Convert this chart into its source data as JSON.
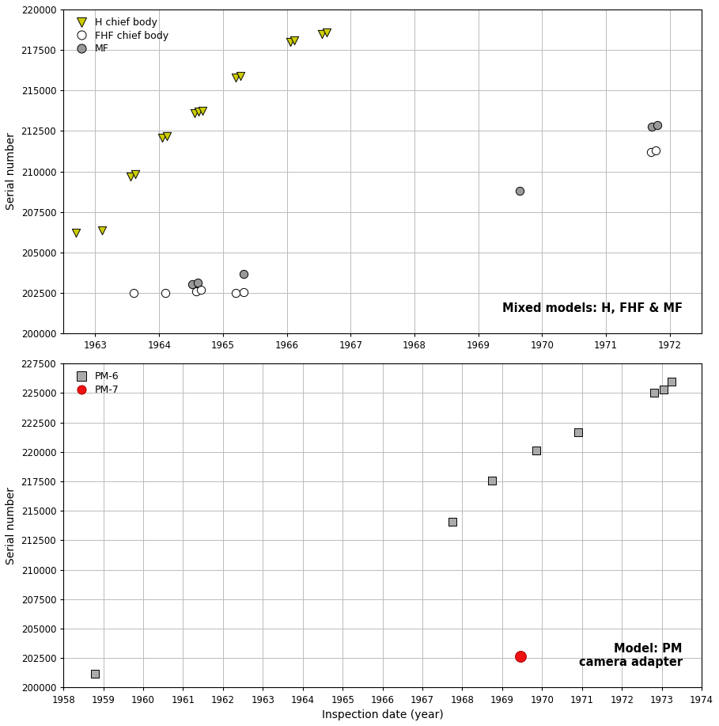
{
  "top_plot": {
    "H_chief_body": {
      "x": [
        1962.7,
        1963.1,
        1963.55,
        1963.62,
        1964.05,
        1964.12,
        1964.55,
        1964.62,
        1964.68,
        1965.2,
        1965.27,
        1966.05,
        1966.12,
        1966.55,
        1966.62
      ],
      "y": [
        206200,
        206350,
        209700,
        209850,
        212100,
        212200,
        213600,
        213700,
        213750,
        215800,
        215900,
        218000,
        218100,
        218500,
        218600
      ]
    },
    "FHF_chief_body": {
      "x": [
        1963.6,
        1964.1,
        1964.58,
        1964.65,
        1965.2,
        1965.32,
        1971.7,
        1971.78
      ],
      "y": [
        202500,
        202500,
        202600,
        202700,
        202500,
        202550,
        211200,
        211300
      ]
    },
    "MF": {
      "x": [
        1964.52,
        1964.6,
        1965.32,
        1969.65,
        1971.72,
        1971.8
      ],
      "y": [
        203050,
        203150,
        203650,
        208800,
        212750,
        212850
      ]
    },
    "ylim": [
      200000,
      220000
    ],
    "xlim": [
      1962.5,
      1972.5
    ],
    "yticks": [
      200000,
      202500,
      205000,
      207500,
      210000,
      212500,
      215000,
      217500,
      220000
    ],
    "xticks": [
      1963,
      1964,
      1965,
      1966,
      1967,
      1968,
      1969,
      1970,
      1971,
      1972
    ],
    "annotation": "Mixed models: H, FHF & MF"
  },
  "bottom_plot": {
    "PM6": {
      "x": [
        1958.8,
        1967.75,
        1968.75,
        1969.85,
        1970.9,
        1972.8,
        1973.05,
        1973.25
      ],
      "y": [
        201200,
        214100,
        217600,
        220100,
        221700,
        225000,
        225300,
        226000
      ]
    },
    "PM7": {
      "x": [
        1969.45
      ],
      "y": [
        202650
      ]
    },
    "ylim": [
      200000,
      227500
    ],
    "xlim": [
      1958.0,
      1974.0
    ],
    "yticks": [
      200000,
      202500,
      205000,
      207500,
      210000,
      212500,
      215000,
      217500,
      220000,
      222500,
      225000,
      227500
    ],
    "xticks": [
      1958,
      1959,
      1960,
      1961,
      1962,
      1963,
      1964,
      1965,
      1966,
      1967,
      1968,
      1969,
      1970,
      1971,
      1972,
      1973,
      1974
    ],
    "annotation": "Model: PM\ncamera adapter"
  },
  "colors": {
    "H_marker": "#cccc00",
    "FHF_marker": "#ffffff",
    "MF_marker": "#999999",
    "PM6_marker": "#aaaaaa",
    "PM7_marker": "#ee1111"
  },
  "xlabel": "Inspection date (year)",
  "ylabel": "Serial number",
  "grid_color": "#bbbbbb",
  "background_color": "#ffffff",
  "marker_size": 55,
  "marker_linewidth": 0.7,
  "tick_fontsize": 8.5,
  "label_fontsize": 10,
  "legend_fontsize": 9,
  "annotation_fontsize": 10.5
}
